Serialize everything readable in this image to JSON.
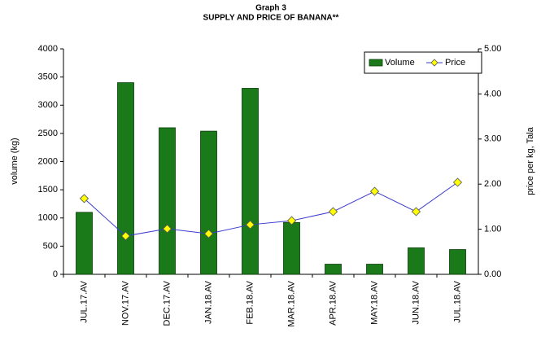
{
  "chart_data": {
    "type": "bar-line",
    "title": "Graph 3",
    "subtitle": "SUPPLY AND PRICE OF BANANA**",
    "y_label": "volume (kg)",
    "y2_label": "price per kg, Tala",
    "categories": [
      "JUL.17.AV",
      "NOV.17.AV",
      "DEC.17.AV",
      "JAN.18.AV",
      "FEB.18.AV",
      "MAR.18.AV",
      "APR.18.AV",
      "MAY.18.AV",
      "JUN.18.AV",
      "JUL.18.AV"
    ],
    "series": [
      {
        "name": "Volume",
        "type": "bar",
        "color": "#1a7a1a",
        "values": [
          1100,
          3400,
          2600,
          2540,
          3300,
          920,
          180,
          180,
          470,
          440
        ]
      },
      {
        "name": "Price",
        "type": "line",
        "axis": "y2",
        "color": "#3a3acc",
        "marker_color": "#ffff00",
        "values": [
          1.68,
          0.85,
          1.01,
          0.9,
          1.1,
          1.19,
          1.39,
          1.84,
          1.39,
          2.04
        ]
      }
    ],
    "ylim": [
      0,
      4000
    ],
    "yticks": [
      0,
      500,
      1000,
      1500,
      2000,
      2500,
      3000,
      3500,
      4000
    ],
    "y2lim": [
      0,
      5
    ],
    "y2ticks": [
      {
        "value": 0,
        "label": "0.00"
      },
      {
        "value": 1,
        "label": "1.00"
      },
      {
        "value": 2,
        "label": "2.00"
      },
      {
        "value": 3,
        "label": "3.00"
      },
      {
        "value": 4,
        "label": "4.00"
      },
      {
        "value": 5,
        "label": "5.00"
      }
    ],
    "legend": "top-right"
  }
}
